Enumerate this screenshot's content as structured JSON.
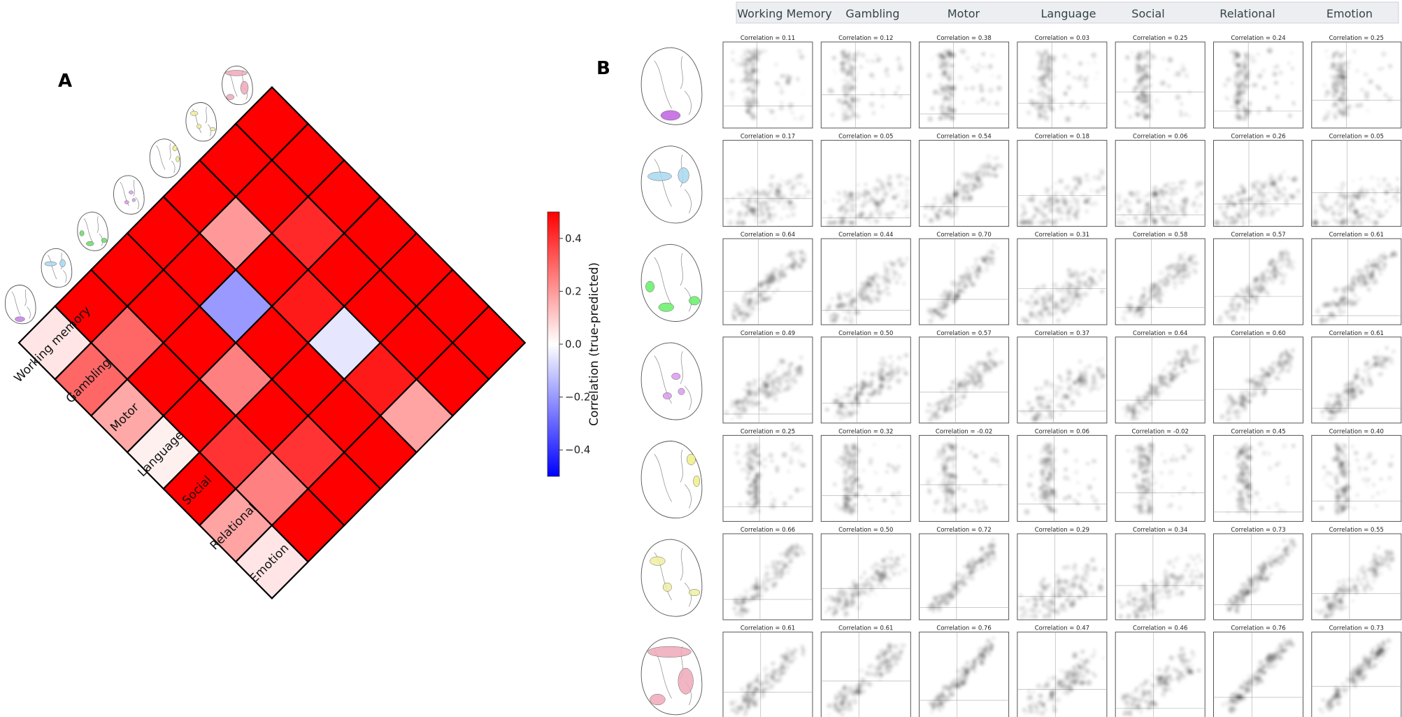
{
  "panel_a_label": "A",
  "panel_b_label": "B",
  "chart_data": [
    {
      "type": "heatmap",
      "title": "",
      "tasks": [
        "Working memory",
        "Gambling",
        "Motor",
        "Language",
        "Social",
        "Relational",
        "Emotion"
      ],
      "matrix_note": "rows: region (1 = bottom-left thumbnail ... 7 = top-right thumbnail); cols: task index",
      "values": [
        [
          0.05,
          0.3,
          0.17,
          0.03,
          0.5,
          0.18,
          0.05
        ],
        [
          0.5,
          0.3,
          0.5,
          0.5,
          0.4,
          0.25,
          0.5
        ],
        [
          0.5,
          0.5,
          0.5,
          0.25,
          0.5,
          0.4,
          0.5
        ],
        [
          0.5,
          0.5,
          -0.2,
          0.5,
          0.5,
          0.5,
          0.5
        ],
        [
          0.5,
          0.2,
          0.5,
          0.45,
          -0.05,
          0.45,
          0.18
        ],
        [
          0.5,
          0.5,
          0.42,
          0.5,
          0.5,
          0.5,
          0.5
        ],
        [
          0.5,
          0.5,
          0.5,
          0.5,
          0.5,
          0.5,
          0.5
        ]
      ],
      "colorbar": {
        "label": "Correlation (true-predicted)",
        "range": [
          -0.5,
          0.5
        ],
        "ticks": [
          -0.4,
          -0.2,
          0.0,
          0.2,
          0.4
        ],
        "tick_labels": [
          "−0.4",
          "−0.2",
          "0.0",
          "0.2",
          "0.4"
        ],
        "colormap": "bwr"
      },
      "region_colors": [
        "#c77fe8",
        "#a8d8f0",
        "#66dd66",
        "#dd99ee",
        "#eeee88",
        "#f0eea0",
        "#f0a8b8"
      ]
    },
    {
      "type": "scatter",
      "columns": [
        "Working Memory",
        "Gambling",
        "Motor",
        "Language",
        "Social",
        "Relational",
        "Emotion"
      ],
      "correlation_prefix": "Correlation = ",
      "correlations": [
        [
          "0.11",
          "0.12",
          "0.38",
          "0.03",
          "0.25",
          "0.24",
          "0.25"
        ],
        [
          "0.17",
          "0.05",
          "0.54",
          "0.18",
          "0.06",
          "0.26",
          "0.05"
        ],
        [
          "0.64",
          "0.44",
          "0.70",
          "0.31",
          "0.58",
          "0.57",
          "0.61"
        ],
        [
          "0.49",
          "0.50",
          "0.57",
          "0.37",
          "0.64",
          "0.60",
          "0.61"
        ],
        [
          "0.25",
          "0.32",
          "-0.02",
          "0.06",
          "-0.02",
          "0.45",
          "0.40"
        ],
        [
          "0.66",
          "0.50",
          "0.72",
          "0.29",
          "0.34",
          "0.73",
          "0.55"
        ],
        [
          "0.61",
          "0.61",
          "0.76",
          "0.47",
          "0.46",
          "0.76",
          "0.73"
        ]
      ],
      "region_colors": [
        "#c060e0",
        "#a8d8f0",
        "#66ee66",
        "#dd99ee",
        "#eeee88",
        "#f0eea0",
        "#f0a8b8"
      ]
    }
  ]
}
